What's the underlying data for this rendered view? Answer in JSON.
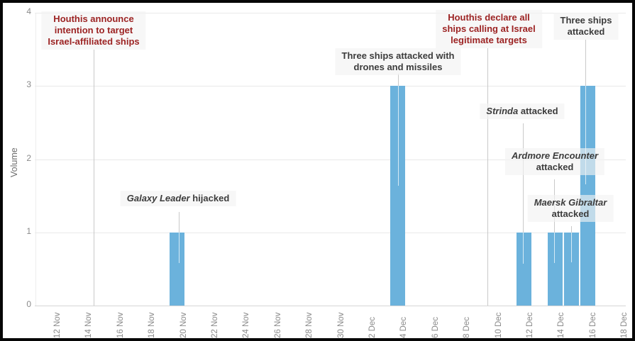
{
  "chart_data": {
    "type": "bar",
    "title": "",
    "ylabel": "Volume",
    "ylim": [
      0,
      4
    ],
    "y_ticks": [
      0,
      1,
      2,
      3,
      4
    ],
    "x_tick_labels": [
      "12 Nov",
      "14 Nov",
      "16 Nov",
      "18 Nov",
      "20 Nov",
      "22 Nov",
      "24 Nov",
      "26 Nov",
      "28 Nov",
      "30 Nov",
      "2 Dec",
      "4 Dec",
      "6 Dec",
      "8 Dec",
      "10 Dec",
      "12 Dec",
      "14 Dec",
      "16 Dec",
      "18 Dec"
    ],
    "grid": "horizontal",
    "legend": "none",
    "bar_color": "#6bb2dc",
    "colors": {
      "event_text": "#9c2323",
      "attack_text": "#3c3c3c",
      "tick_label": "#8a8a8a",
      "gridline": "#e9e9e9"
    },
    "bars": [
      {
        "date": "19 Nov",
        "value": 1
      },
      {
        "date": "3 Dec",
        "value": 3
      },
      {
        "date": "11 Dec",
        "value": 1
      },
      {
        "date": "13 Dec",
        "value": 1
      },
      {
        "date": "14 Dec",
        "value": 1
      },
      {
        "date": "15 Dec",
        "value": 3
      }
    ],
    "annotations": [
      {
        "id": "houthis-announce",
        "date": "14 Nov",
        "kind": "event",
        "lines": [
          [
            {
              "t": "Houthis announce"
            }
          ],
          [
            {
              "t": "intention to target"
            }
          ],
          [
            {
              "t": "Israel-affiliated ships"
            }
          ]
        ]
      },
      {
        "id": "galaxy-leader",
        "date": "19 Nov",
        "kind": "attack",
        "lines": [
          [
            {
              "t": "Galaxy Leader",
              "i": true
            },
            {
              "t": " hijacked"
            }
          ]
        ]
      },
      {
        "id": "three-ships-drones",
        "date": "3 Dec",
        "kind": "attack",
        "lines": [
          [
            {
              "t": "Three ships attacked with"
            }
          ],
          [
            {
              "t": "drones and missiles"
            }
          ]
        ]
      },
      {
        "id": "houthis-declare",
        "date": "9 Dec",
        "kind": "event",
        "lines": [
          [
            {
              "t": "Houthis declare all"
            }
          ],
          [
            {
              "t": "ships calling at Israel"
            }
          ],
          [
            {
              "t": "legitimate targets"
            }
          ]
        ]
      },
      {
        "id": "strinda",
        "date": "11 Dec",
        "kind": "attack",
        "lines": [
          [
            {
              "t": "Strinda",
              "i": true
            },
            {
              "t": " attacked"
            }
          ]
        ]
      },
      {
        "id": "ardmore",
        "date": "13 Dec",
        "kind": "attack",
        "lines": [
          [
            {
              "t": "Ardmore Encounter",
              "i": true
            }
          ],
          [
            {
              "t": "attacked"
            }
          ]
        ]
      },
      {
        "id": "maersk",
        "date": "14 Dec",
        "kind": "attack",
        "lines": [
          [
            {
              "t": "Maersk Gibraltar",
              "i": true
            }
          ],
          [
            {
              "t": "attacked"
            }
          ]
        ]
      },
      {
        "id": "three-ships",
        "date": "15 Dec",
        "kind": "attack",
        "lines": [
          [
            {
              "t": "Three ships"
            }
          ],
          [
            {
              "t": "attacked"
            }
          ]
        ]
      }
    ]
  }
}
